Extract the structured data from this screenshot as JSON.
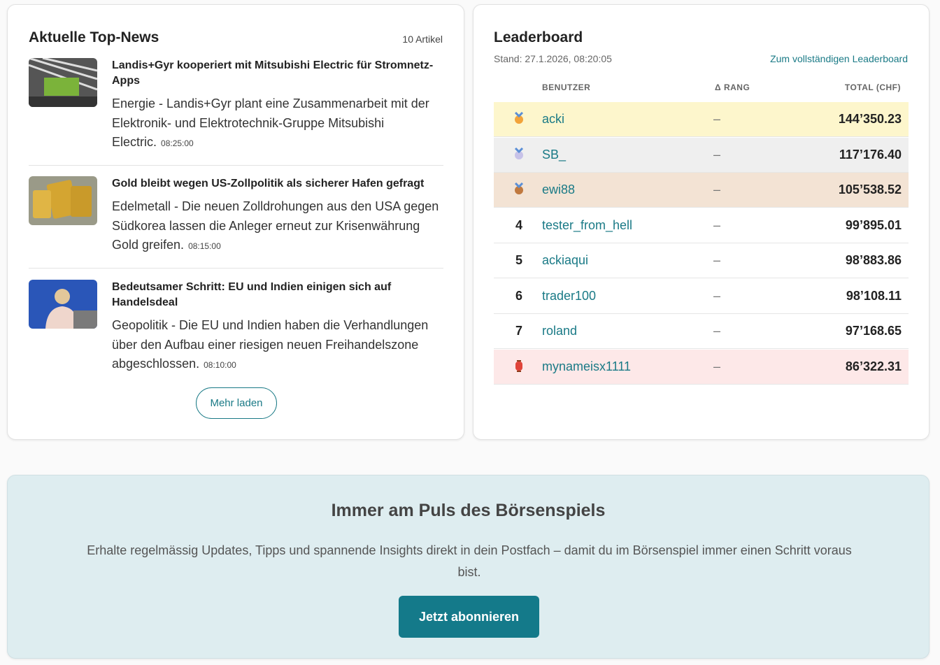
{
  "news": {
    "title": "Aktuelle Top-News",
    "count": "10 Artikel",
    "items": [
      {
        "title": "Landis+Gyr kooperiert mit Mitsubishi Electric für Stromnetz-Apps",
        "summary": "Energie - Landis+Gyr plant eine Zusammenarbeit mit der Elektronik- und Elektrotechnik-Gruppe Mitsubishi Electric.",
        "time": "08:25:00"
      },
      {
        "title": "Gold bleibt wegen US-Zollpolitik als sicherer Hafen gefragt",
        "summary": "Edelmetall - Die neuen Zolldrohungen aus den USA gegen Südkorea lassen die Anleger erneut zur Krisenwährung Gold greifen.",
        "time": "08:15:00"
      },
      {
        "title": "Bedeutsamer Schritt: EU und Indien einigen sich auf Handelsdeal",
        "summary": "Geopolitik - Die EU und Indien haben die Verhandlungen über den Aufbau einer riesigen neuen Freihandelszone abgeschlossen.",
        "time": "08:10:00"
      }
    ],
    "more": "Mehr laden"
  },
  "leaderboard": {
    "title": "Leaderboard",
    "stand": "Stand: 27.1.2026, 08:20:05",
    "link": "Zum vollständigen Leaderboard",
    "columns": [
      "BENUTZER",
      "Δ RANG",
      "TOTAL (CHF)"
    ],
    "rows": [
      {
        "user": "acki",
        "delta": "–",
        "total": "144’350.23"
      },
      {
        "user": "SB_",
        "delta": "–",
        "total": "117’176.40"
      },
      {
        "user": "ewi88",
        "delta": "–",
        "total": "105’538.52"
      },
      {
        "rank": "4",
        "user": "tester_from_hell",
        "delta": "–",
        "total": "99’895.01"
      },
      {
        "rank": "5",
        "user": "ackiaqui",
        "delta": "–",
        "total": "98’883.86"
      },
      {
        "rank": "6",
        "user": "trader100",
        "delta": "–",
        "total": "98’108.11"
      },
      {
        "rank": "7",
        "user": "roland",
        "delta": "–",
        "total": "97’168.65"
      },
      {
        "user": "mynameisx1111",
        "delta": "–",
        "total": "86’322.31"
      }
    ]
  },
  "newsletter": {
    "title": "Immer am Puls des Börsenspiels",
    "text": "Erhalte regelmässig Updates, Tipps und spannende Insights direkt in dein Postfach – damit du im Börsenspiel immer einen Schritt voraus bist.",
    "button": "Jetzt abonnieren"
  }
}
